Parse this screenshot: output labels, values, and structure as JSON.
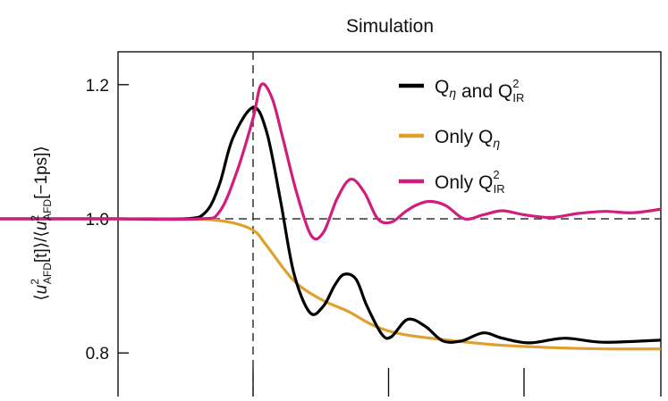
{
  "chart_data": {
    "type": "line",
    "title": "Simulation",
    "ylabel": "⟨u²AFD[t]⟩/⟨u²AFD[−1ps]⟩",
    "ylabel_parts": {
      "open": "⟨",
      "u1": "u",
      "sup1": "2",
      "sub1": "AFD",
      "mid": "[t]⟩/⟨",
      "u2": "u",
      "sup2": "2",
      "sub2": "AFD",
      "close": "[−1ps]⟩"
    },
    "xlim": [
      -2,
      3
    ],
    "ylim": [
      0.78,
      1.26
    ],
    "y_ticks": [
      0.8,
      1.0,
      1.2
    ],
    "y_tick_labels": [
      "0.8",
      "1.0",
      "1.2"
    ],
    "x_ticks": [
      0,
      1,
      2
    ],
    "reference_lines": {
      "horizontal": 1.0,
      "vertical": 0
    },
    "legend": {
      "placement": "top-right",
      "entries": [
        {
          "base": "Q",
          "sub": "η",
          "connector": " and ",
          "base2": "Q",
          "sup2": "2",
          "sub2": "IR"
        },
        {
          "prefix": "Only ",
          "base": "Q",
          "sub": "η"
        },
        {
          "prefix": "Only ",
          "base": "Q",
          "sup": "2",
          "sub": "IR"
        }
      ]
    },
    "series": [
      {
        "color": "#000000",
        "x": [
          -2.0,
          -1.0,
          -0.5,
          -0.35,
          -0.25,
          -0.15,
          0.0,
          0.1,
          0.2,
          0.3,
          0.42,
          0.52,
          0.6,
          0.67,
          0.76,
          0.84,
          0.95,
          1.02,
          1.14,
          1.27,
          1.4,
          1.54,
          1.7,
          1.84,
          2.04,
          2.3,
          2.58,
          3.0
        ],
        "y": [
          1.0,
          1.0,
          1.0,
          1.01,
          1.05,
          1.12,
          1.166,
          1.13,
          1.03,
          0.92,
          0.86,
          0.87,
          0.9,
          0.917,
          0.91,
          0.87,
          0.828,
          0.824,
          0.85,
          0.84,
          0.818,
          0.818,
          0.83,
          0.822,
          0.815,
          0.822,
          0.816,
          0.819
        ]
      },
      {
        "color": "#E0A030",
        "x": [
          -2.0,
          -1.0,
          -0.5,
          -0.2,
          0.0,
          0.1,
          0.3,
          0.5,
          0.7,
          0.9,
          1.1,
          1.4,
          1.8,
          2.2,
          2.6,
          3.0
        ],
        "y": [
          1.0,
          1.0,
          1.0,
          0.996,
          0.983,
          0.96,
          0.908,
          0.88,
          0.862,
          0.84,
          0.828,
          0.82,
          0.812,
          0.808,
          0.806,
          0.806
        ]
      },
      {
        "color": "#D01E7E",
        "x": [
          -2.0,
          -1.0,
          -0.4,
          -0.25,
          -0.12,
          0.0,
          0.06,
          0.14,
          0.22,
          0.32,
          0.43,
          0.52,
          0.62,
          0.72,
          0.82,
          0.92,
          1.02,
          1.12,
          1.2,
          1.3,
          1.42,
          1.56,
          1.7,
          1.84,
          2.0,
          2.2,
          2.4,
          2.6,
          2.8,
          3.0
        ],
        "y": [
          1.0,
          1.0,
          1.0,
          1.01,
          1.07,
          1.15,
          1.2,
          1.18,
          1.12,
          1.04,
          0.975,
          0.98,
          1.03,
          1.059,
          1.04,
          1.0,
          0.995,
          1.01,
          1.02,
          1.026,
          1.02,
          1.0,
          1.006,
          1.012,
          1.006,
          1.002,
          1.008,
          1.011,
          1.009,
          1.014
        ]
      }
    ]
  }
}
